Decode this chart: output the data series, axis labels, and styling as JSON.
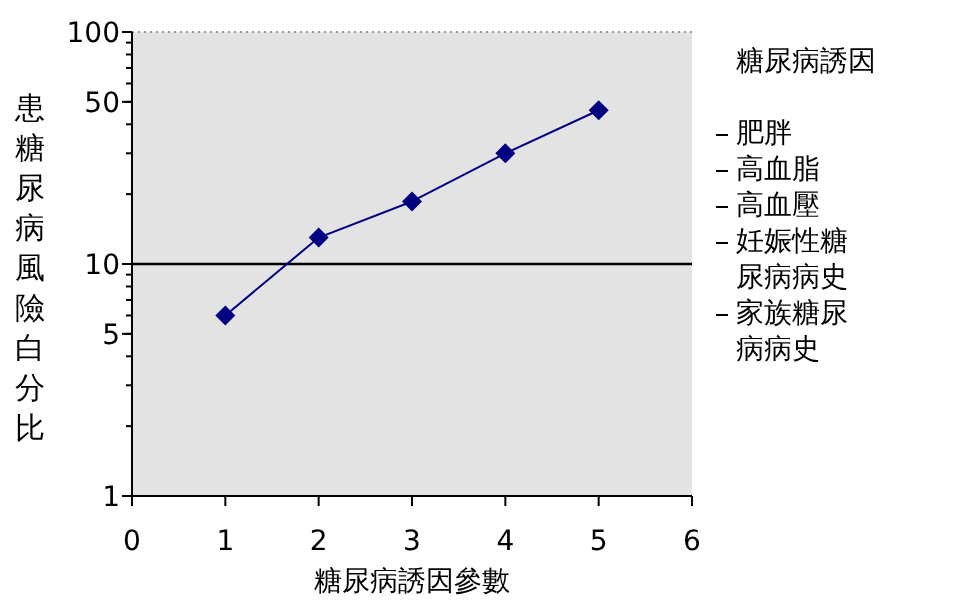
{
  "chart_data": {
    "type": "line",
    "x": [
      1,
      2,
      3,
      4,
      5
    ],
    "series": [
      {
        "color": "#000080",
        "values": [
          6,
          13,
          18.6,
          30,
          46
        ]
      }
    ],
    "marker": "diamond",
    "line_style": "solid",
    "log": "y",
    "xlim": [
      0,
      6
    ],
    "xticks": [
      0,
      1,
      2,
      3,
      4,
      5,
      6
    ],
    "ylim": [
      1,
      100
    ],
    "yticks": [
      1,
      5,
      10,
      50,
      100
    ],
    "ref_lines": [
      {
        "axis": "y",
        "value": 10,
        "color": "#000000"
      }
    ],
    "xlabel": "糖尿病誘因參數",
    "ylabel": "患糖尿病風險白分比",
    "legend_title": "糖尿病誘因",
    "annotations": [
      "肥胖",
      "高血脂",
      "高血壓",
      "妊娠性糖尿病病史",
      "家族糖尿病病史"
    ]
  }
}
